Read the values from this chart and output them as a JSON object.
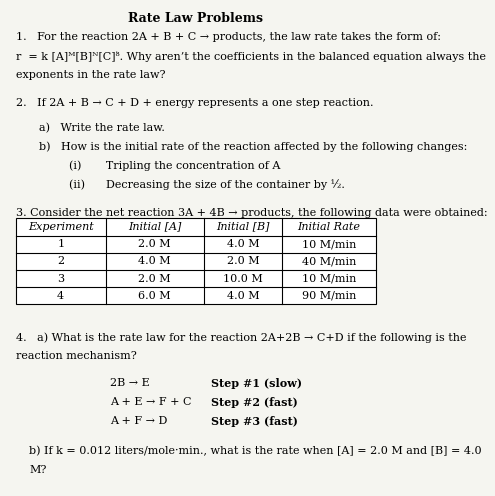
{
  "title": "Rate Law Problems",
  "background_color": "#f5f5f0",
  "text_color": "#000000",
  "figsize": [
    4.95,
    4.96
  ],
  "dpi": 100,
  "table": {
    "headers": [
      "Experiment",
      "Initial [A]",
      "Initial [B]",
      "Initial Rate"
    ],
    "rows": [
      [
        "1",
        "2.0 M",
        "4.0 M",
        "10 M/min"
      ],
      [
        "2",
        "4.0 M",
        "2.0 M",
        "40 M/min"
      ],
      [
        "3",
        "2.0 M",
        "10.0 M",
        "10 M/min"
      ],
      [
        "4",
        "6.0 M",
        "4.0 M",
        "90 M/min"
      ]
    ]
  }
}
